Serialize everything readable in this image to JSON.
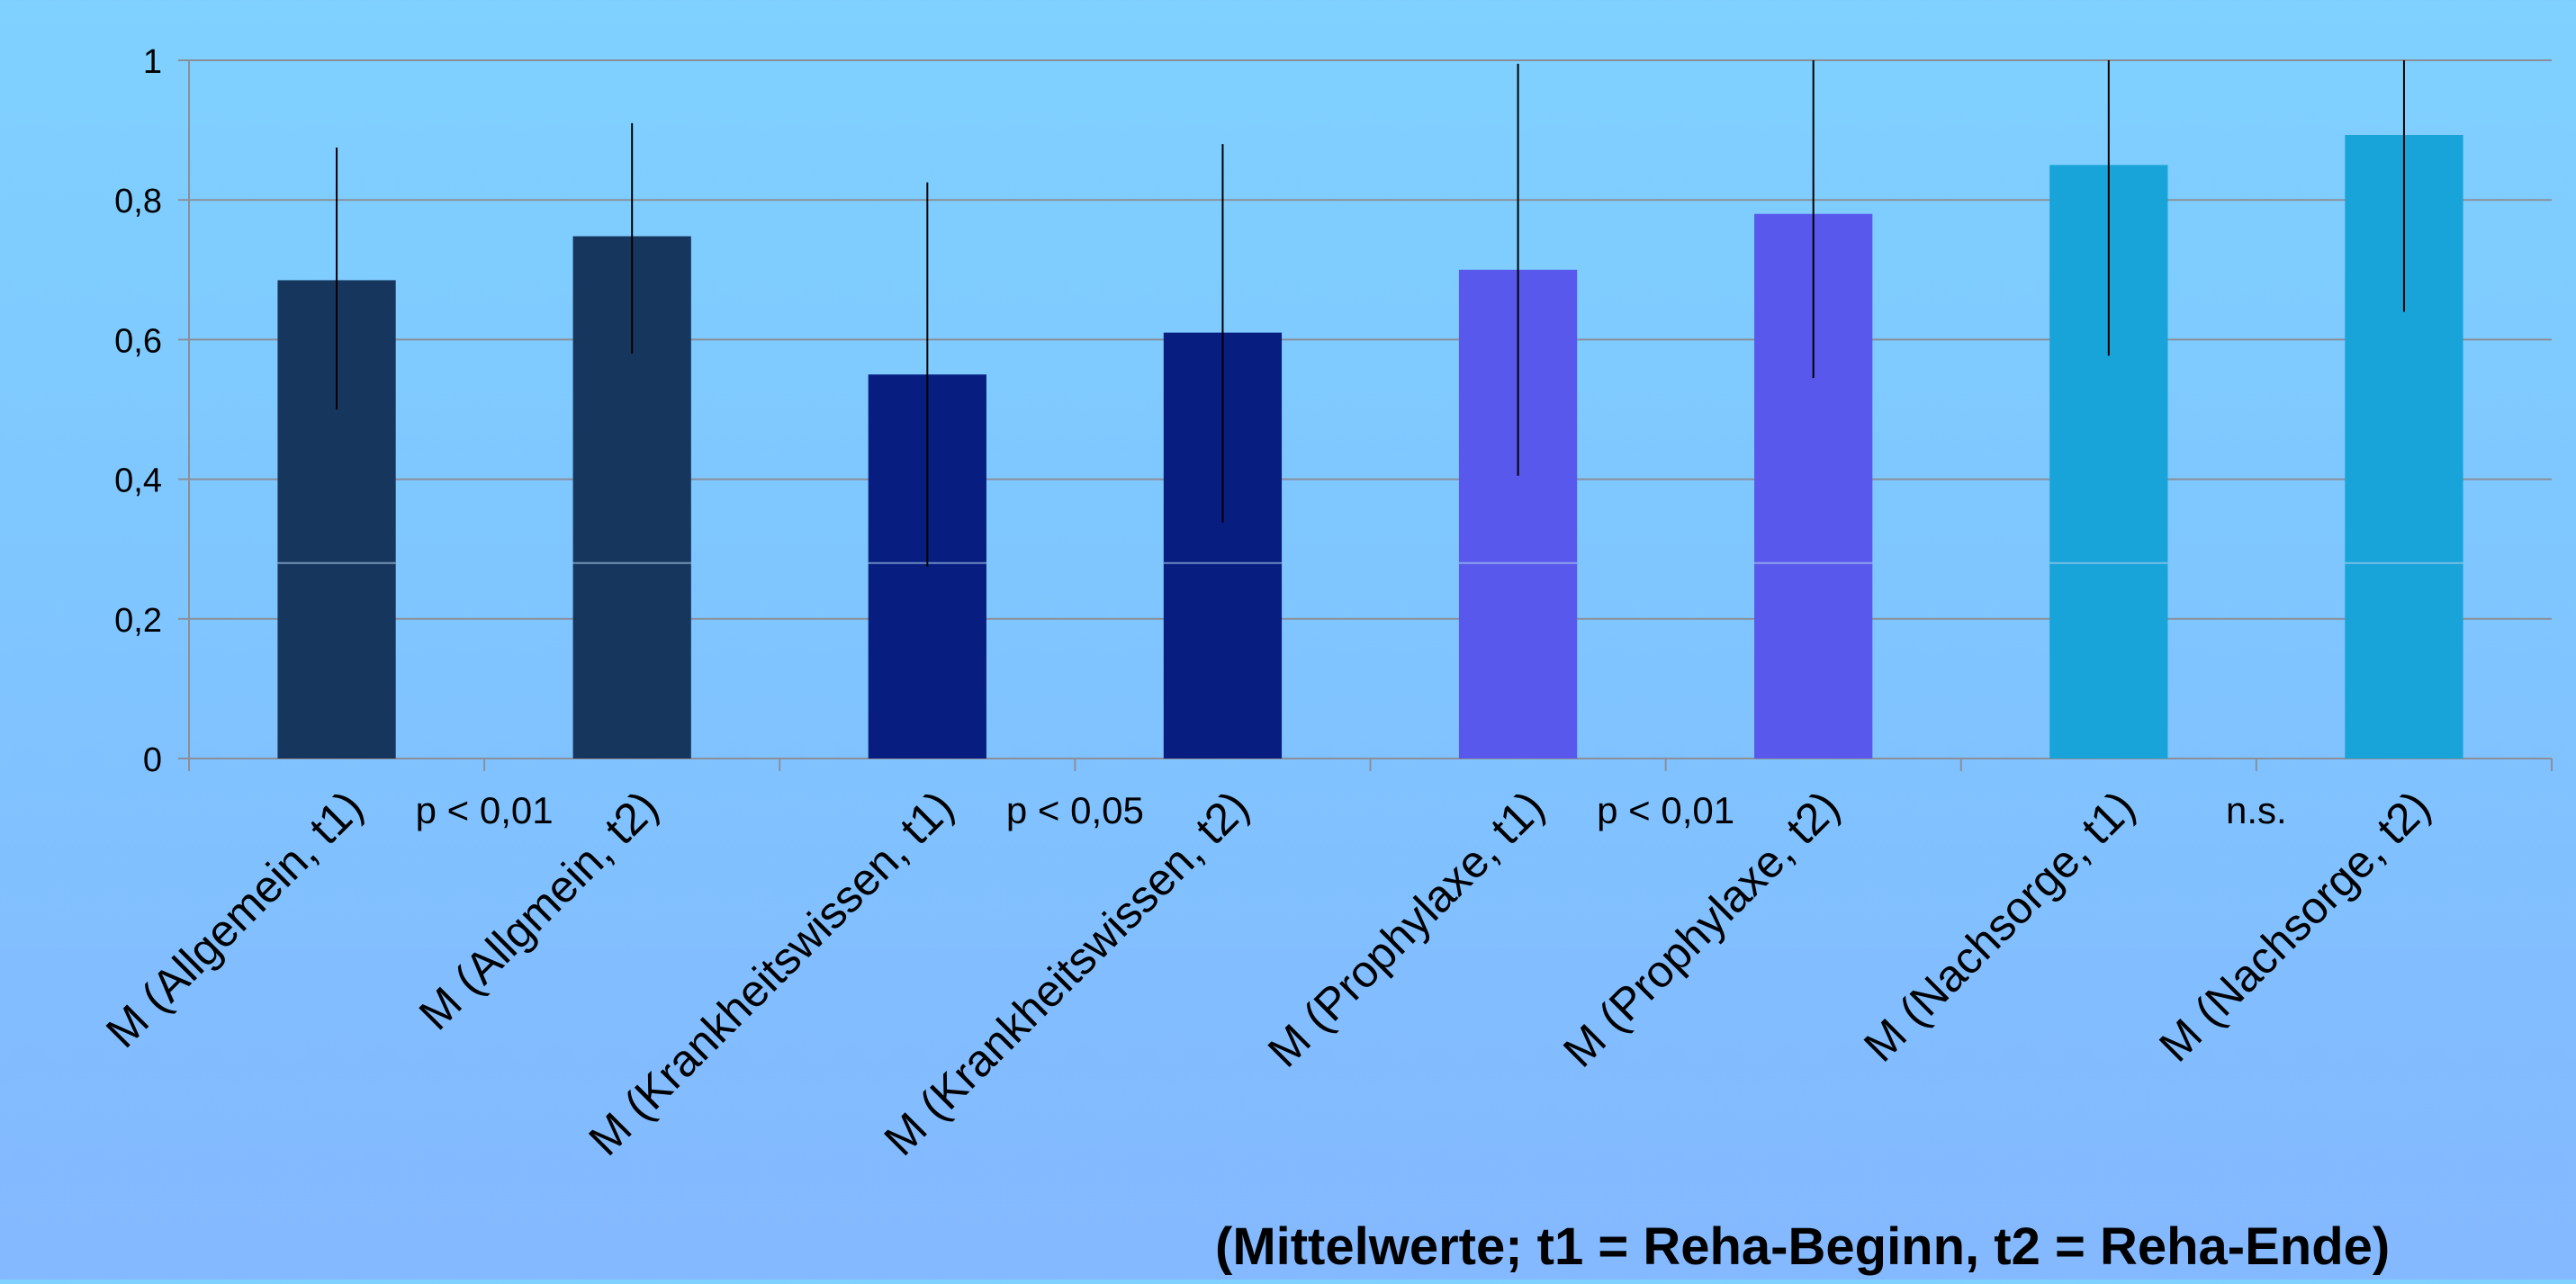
{
  "chart_data": {
    "type": "bar",
    "categories": [
      "M (Allgemein, t1)",
      "M (Allgmein, t2)",
      "M (Krankheitswissen, t1)",
      "M (Krankheitswissen, t2)",
      "M (Prophylaxe, t1)",
      "M (Prophylaxe, t2)",
      "M (Nachsorge, t1)",
      "M (Nachsorge, t2)"
    ],
    "values": [
      0.685,
      0.748,
      0.55,
      0.61,
      0.7,
      0.78,
      0.85,
      0.893
    ],
    "error_low": [
      0.5,
      0.58,
      0.275,
      0.338,
      0.405,
      0.545,
      0.577,
      0.64
    ],
    "error_high": [
      0.875,
      0.91,
      0.825,
      0.88,
      0.995,
      1.0,
      1.0,
      1.0
    ],
    "bar_colors": [
      "#17365d",
      "#17365d",
      "#071e80",
      "#071e80",
      "#5858ec",
      "#5858ec",
      "#18a3d9",
      "#18a3d9"
    ],
    "group_labels": [
      "p < 0,01",
      "p < 0,05",
      "p < 0,01",
      "n.s."
    ],
    "y_ticks": [
      "0",
      "0,2",
      "0,4",
      "0,6",
      "0,8",
      "1"
    ],
    "ylim": [
      0,
      1
    ],
    "grid": true,
    "footnote": "(Mittelwerte;  t1 = Reha-Beginn, t2 = Reha-Ende)"
  }
}
